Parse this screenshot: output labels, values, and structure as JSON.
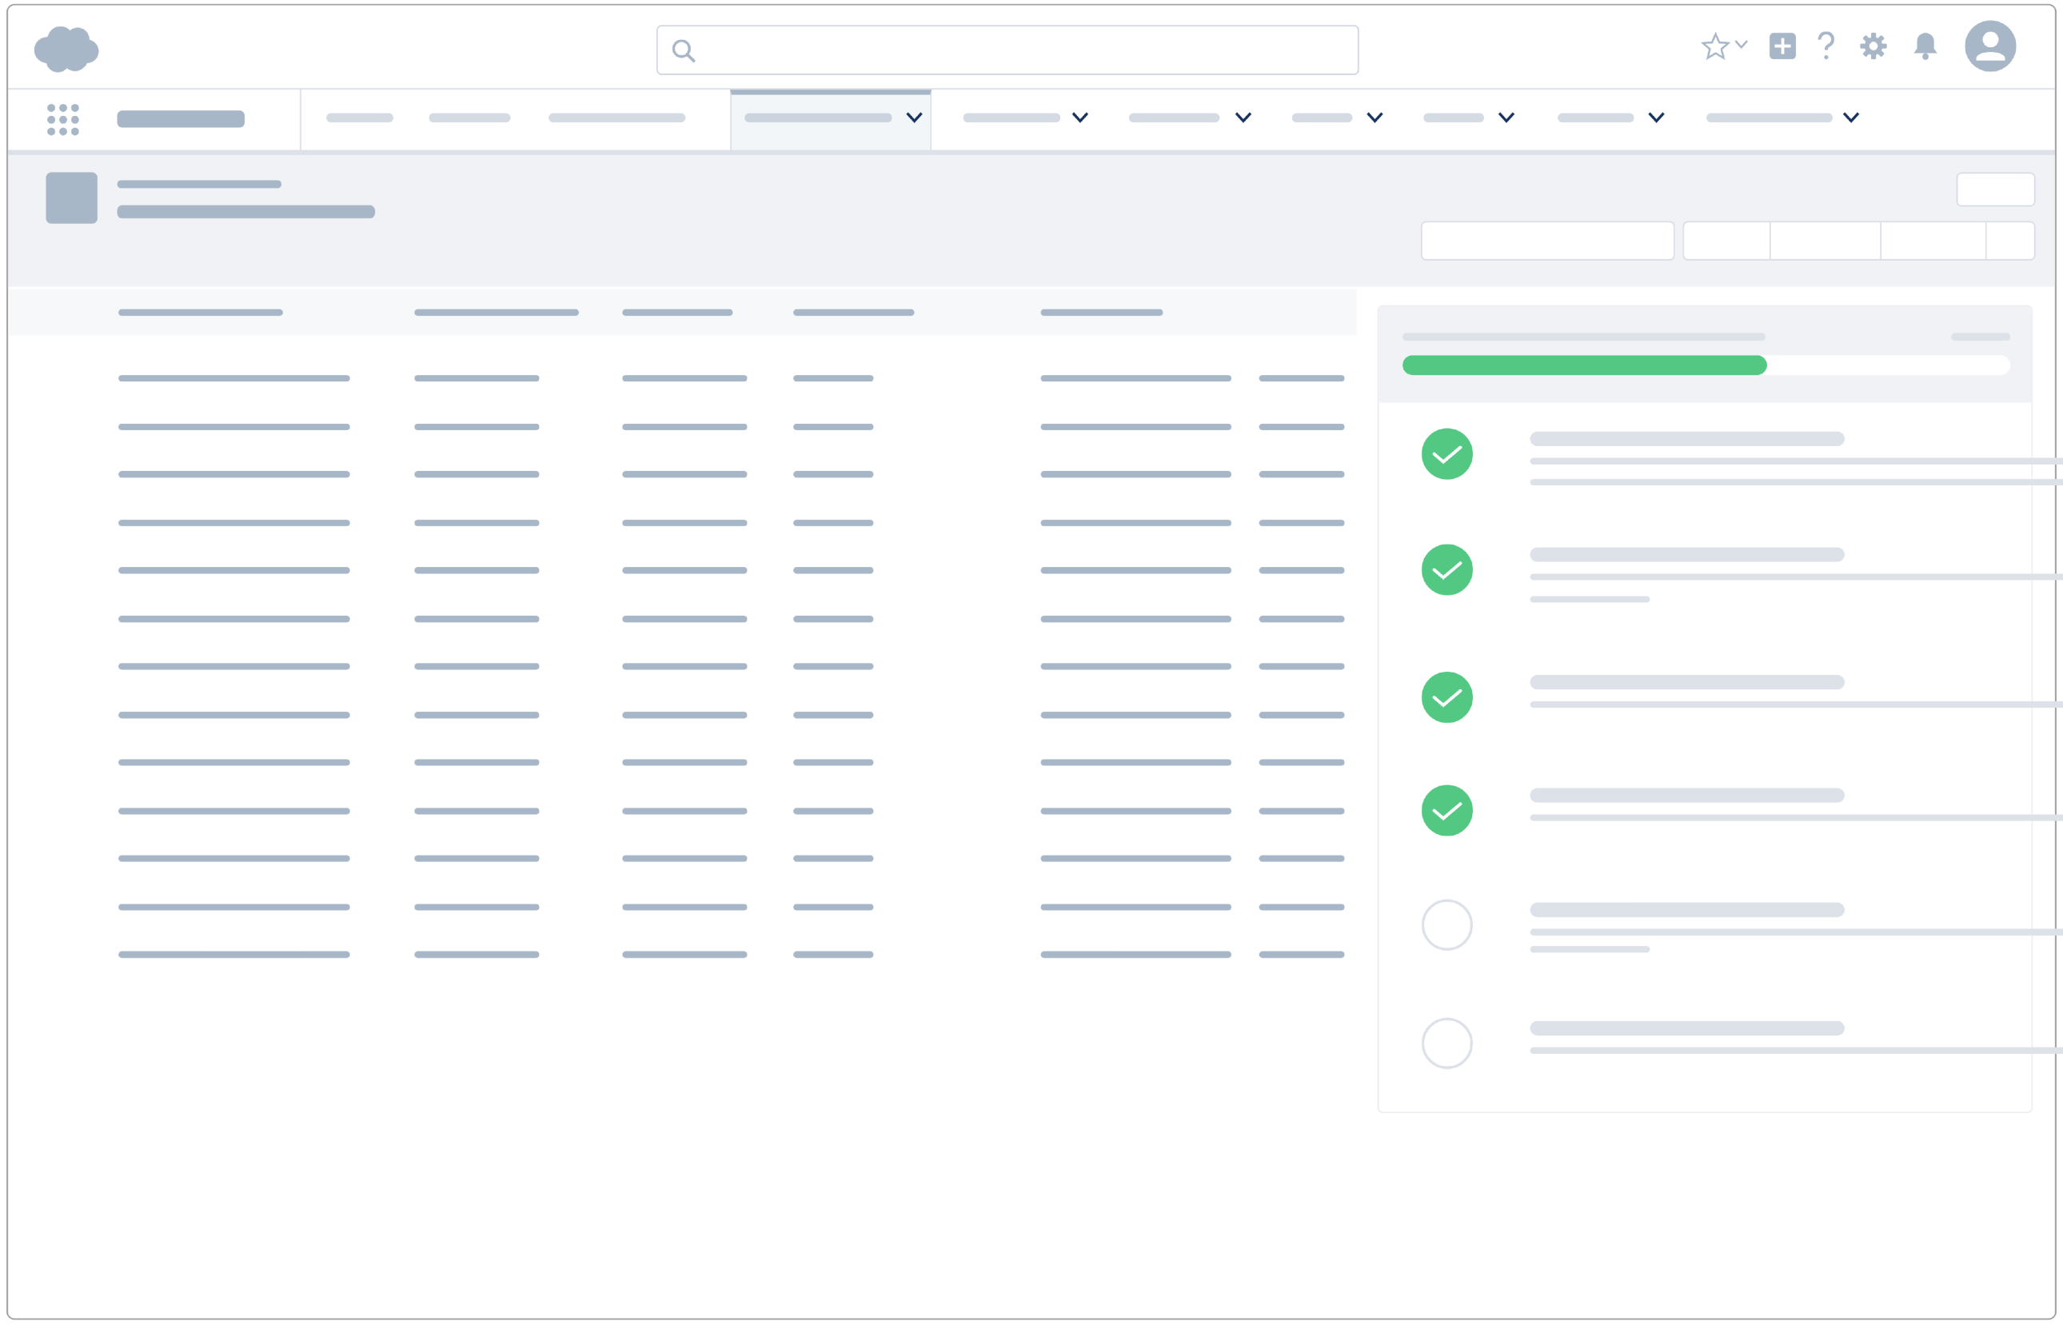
{
  "colors": {
    "accent": "#52c882",
    "skeleton": "#a8b7c7",
    "skeleton_light": "#d4dbe3",
    "chevron": "#16325c",
    "panel_bg": "#f0f2f5"
  },
  "header": {
    "logo": "cloud-logo",
    "search": {
      "icon": "search-icon",
      "placeholder": "",
      "value": ""
    },
    "icons": [
      "favorites-star-icon",
      "chevron-down-icon",
      "add-icon",
      "help-icon",
      "settings-gear-icon",
      "notifications-bell-icon",
      "user-avatar-icon"
    ]
  },
  "nav": {
    "launcher_icon": "app-launcher-grid-icon",
    "active_tab_index": 3,
    "dropdown_icon": "chevron-down-icon"
  },
  "setup_progress": {
    "percent": 60
  },
  "checklist": {
    "items": [
      {
        "completed": true
      },
      {
        "completed": true
      },
      {
        "completed": true
      },
      {
        "completed": true
      },
      {
        "completed": false
      },
      {
        "completed": false
      }
    ],
    "check_icon": "check-circle-icon",
    "empty_icon": "empty-circle-icon"
  }
}
